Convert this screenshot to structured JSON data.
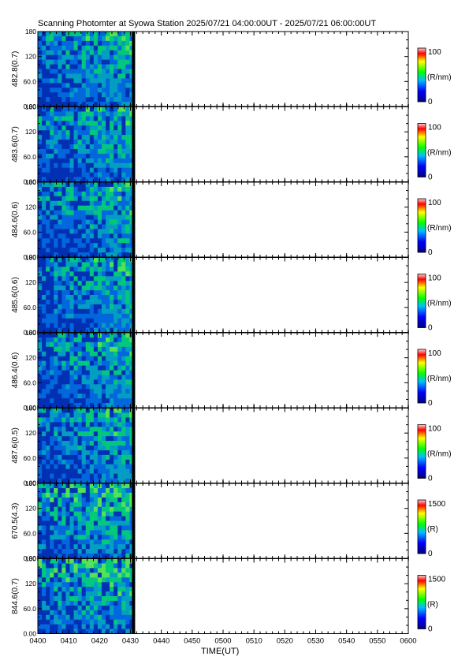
{
  "title": "Scanning Photomter at Syowa Station  2025/07/21 04:00:00UT - 2025/07/21 06:00:00UT",
  "xlabel": "TIME(UT)",
  "x_ticks": [
    "0400",
    "0410",
    "0420",
    "0430",
    "0440",
    "0450",
    "0500",
    "0510",
    "0520",
    "0530",
    "0540",
    "0550",
    "0600"
  ],
  "y_ticks": [
    "0.00",
    "60.0",
    "120",
    "180"
  ],
  "data_coverage": {
    "start": "0400",
    "end": "0431"
  },
  "colors": {
    "low": "#0000a0",
    "mid": "#00ff00",
    "high": "#ff0000",
    "background": "#ffffff"
  },
  "chart_data": [
    {
      "type": "heatmap",
      "ylabel": "482.8(0.7)",
      "ylim": [
        0,
        180
      ],
      "colorbar": {
        "range": [
          0,
          100
        ],
        "ticks": [
          "0",
          "100"
        ],
        "unit": "(R/nm)"
      }
    },
    {
      "type": "heatmap",
      "ylabel": "483.6(0.7)",
      "ylim": [
        0,
        180
      ],
      "colorbar": {
        "range": [
          0,
          100
        ],
        "ticks": [
          "0",
          "100"
        ],
        "unit": "(R/nm)"
      }
    },
    {
      "type": "heatmap",
      "ylabel": "484.6(0.6)",
      "ylim": [
        0,
        180
      ],
      "colorbar": {
        "range": [
          0,
          100
        ],
        "ticks": [
          "0",
          "100"
        ],
        "unit": "(R/nm)"
      }
    },
    {
      "type": "heatmap",
      "ylabel": "485.6(0.6)",
      "ylim": [
        0,
        180
      ],
      "colorbar": {
        "range": [
          0,
          100
        ],
        "ticks": [
          "0",
          "100"
        ],
        "unit": "(R/nm)"
      }
    },
    {
      "type": "heatmap",
      "ylabel": "486.4(0.6)",
      "ylim": [
        0,
        180
      ],
      "colorbar": {
        "range": [
          0,
          100
        ],
        "ticks": [
          "0",
          "100"
        ],
        "unit": "(R/nm)"
      }
    },
    {
      "type": "heatmap",
      "ylabel": "487.6(0.5)",
      "ylim": [
        0,
        180
      ],
      "colorbar": {
        "range": [
          0,
          100
        ],
        "ticks": [
          "0",
          "100"
        ],
        "unit": "(R/nm)"
      }
    },
    {
      "type": "heatmap",
      "ylabel": "670.5(4.3)",
      "ylim": [
        0,
        180
      ],
      "colorbar": {
        "range": [
          0,
          1500
        ],
        "ticks": [
          "0",
          "1500"
        ],
        "unit": "(R)"
      }
    },
    {
      "type": "heatmap",
      "ylabel": "844.6(0.7)",
      "ylim": [
        0,
        180
      ],
      "colorbar": {
        "range": [
          0,
          1500
        ],
        "ticks": [
          "0",
          "1500"
        ],
        "unit": "(R)"
      }
    }
  ]
}
